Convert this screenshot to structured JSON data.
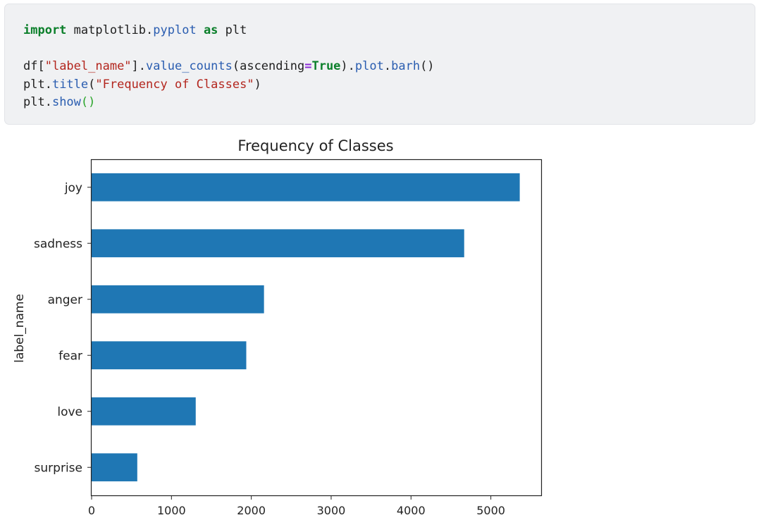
{
  "code_cell": {
    "lines": [
      [
        {
          "t": "import",
          "c": "kw"
        },
        {
          "t": " matplotlib",
          "c": "plain"
        },
        {
          "t": ".",
          "c": "plain"
        },
        {
          "t": "pyplot",
          "c": "fn"
        },
        {
          "t": " ",
          "c": "plain"
        },
        {
          "t": "as",
          "c": "kw"
        },
        {
          "t": " plt",
          "c": "plain"
        }
      ],
      [],
      [
        {
          "t": "df[",
          "c": "plain"
        },
        {
          "t": "\"label_name\"",
          "c": "str"
        },
        {
          "t": "].",
          "c": "plain"
        },
        {
          "t": "value_counts",
          "c": "fn"
        },
        {
          "t": "(ascending",
          "c": "plain"
        },
        {
          "t": "=",
          "c": "op"
        },
        {
          "t": "True",
          "c": "cst"
        },
        {
          "t": ").",
          "c": "plain"
        },
        {
          "t": "plot",
          "c": "fn"
        },
        {
          "t": ".",
          "c": "plain"
        },
        {
          "t": "barh",
          "c": "fn"
        },
        {
          "t": "()",
          "c": "plain"
        }
      ],
      [
        {
          "t": "plt.",
          "c": "plain"
        },
        {
          "t": "title",
          "c": "fn"
        },
        {
          "t": "(",
          "c": "plain"
        },
        {
          "t": "\"Frequency of Classes\"",
          "c": "str"
        },
        {
          "t": ")",
          "c": "plain"
        }
      ],
      [
        {
          "t": "plt.",
          "c": "plain"
        },
        {
          "t": "show",
          "c": "fn"
        },
        {
          "t": "()",
          "c": "paren-g"
        }
      ]
    ]
  },
  "chart_data": {
    "type": "bar",
    "orientation": "horizontal",
    "title": "Frequency of Classes",
    "xlabel": "",
    "ylabel": "label_name",
    "categories": [
      "surprise",
      "love",
      "fear",
      "anger",
      "sadness",
      "joy"
    ],
    "values": [
      572,
      1304,
      1937,
      2159,
      4666,
      5362
    ],
    "xlim": [
      0,
      5630
    ],
    "xticks": [
      0,
      1000,
      2000,
      3000,
      4000,
      5000
    ],
    "bar_color": "#1f77b4",
    "grid": false,
    "legend": "none"
  }
}
